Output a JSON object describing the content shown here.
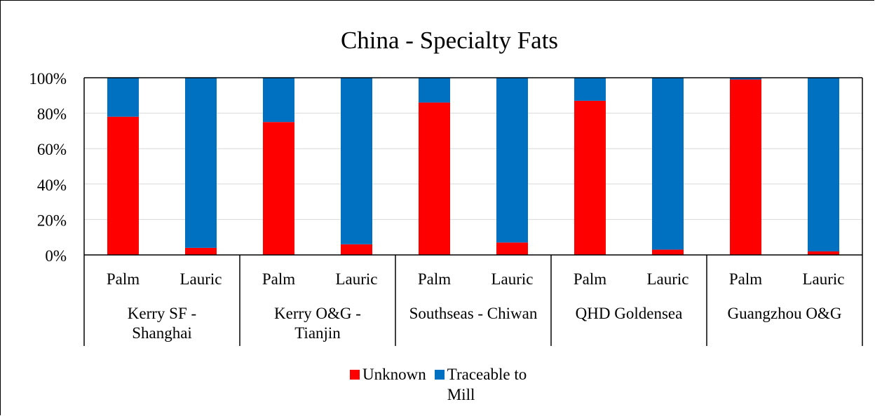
{
  "chart_data": {
    "type": "bar",
    "stacked": true,
    "percent": true,
    "title": "China  - Specialty Fats",
    "groups": [
      {
        "label": "Kerry SF - Shanghai",
        "categories": [
          "Palm",
          "Lauric"
        ]
      },
      {
        "label": "Kerry O&G - Tianjin",
        "categories": [
          "Palm",
          "Lauric"
        ]
      },
      {
        "label": "Southseas - Chiwan",
        "categories": [
          "Palm",
          "Lauric"
        ]
      },
      {
        "label": "QHD Goldensea",
        "categories": [
          "Palm",
          "Lauric"
        ]
      },
      {
        "label": "Guangzhou O&G",
        "categories": [
          "Palm",
          "Lauric"
        ]
      }
    ],
    "categories": [
      "Palm",
      "Lauric",
      "Palm",
      "Lauric",
      "Palm",
      "Lauric",
      "Palm",
      "Lauric",
      "Palm",
      "Lauric"
    ],
    "series": [
      {
        "name": "Unknown",
        "color": "#ff0000",
        "values": [
          78,
          4,
          75,
          6,
          86,
          7,
          87,
          3,
          99,
          2
        ]
      },
      {
        "name": "Traceable to Mill",
        "color": "#0070c0",
        "values": [
          22,
          96,
          25,
          94,
          14,
          93,
          13,
          97,
          1,
          98
        ]
      }
    ],
    "ylim": [
      0,
      100
    ],
    "yticks": [
      "0%",
      "20%",
      "40%",
      "60%",
      "80%",
      "100%"
    ],
    "grid": true,
    "legend_position": "bottom"
  }
}
